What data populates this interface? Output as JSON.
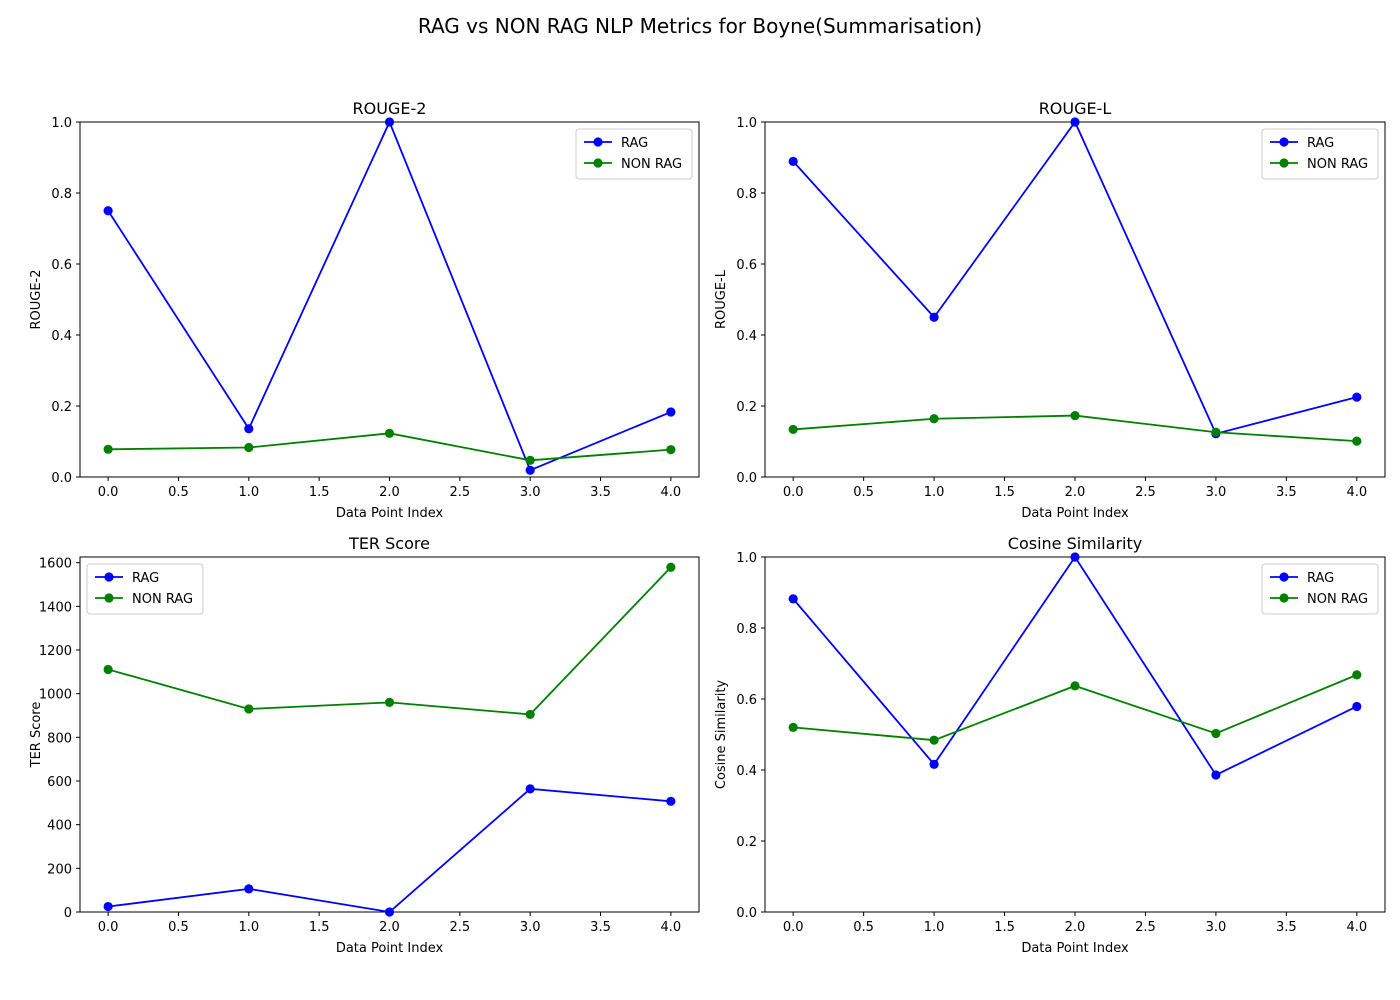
{
  "figure": {
    "title": "RAG vs NON RAG NLP Metrics for Boyne(Summarisation)"
  },
  "chart_data": [
    {
      "type": "line",
      "title": "ROUGE-2",
      "xlabel": "Data Point Index",
      "ylabel": "ROUGE-2",
      "x": [
        0,
        1,
        2,
        3,
        4
      ],
      "xlim": [
        -0.2,
        4.2
      ],
      "ylim": [
        0,
        1.0
      ],
      "xticks": [
        0.0,
        0.5,
        1.0,
        1.5,
        2.0,
        2.5,
        3.0,
        3.5,
        4.0
      ],
      "yticks": [
        0.0,
        0.2,
        0.4,
        0.6,
        0.8,
        1.0
      ],
      "ytick_decimals": 1,
      "legend_loc": "top-right",
      "series": [
        {
          "name": "RAG",
          "color": "#0000ff",
          "values": [
            0.75,
            0.136,
            1.0,
            0.019,
            0.183
          ]
        },
        {
          "name": "NON RAG",
          "color": "#008000",
          "values": [
            0.078,
            0.083,
            0.123,
            0.047,
            0.077
          ]
        }
      ]
    },
    {
      "type": "line",
      "title": "ROUGE-L",
      "xlabel": "Data Point Index",
      "ylabel": "ROUGE-L",
      "x": [
        0,
        1,
        2,
        3,
        4
      ],
      "xlim": [
        -0.2,
        4.2
      ],
      "ylim": [
        0,
        1.0
      ],
      "xticks": [
        0.0,
        0.5,
        1.0,
        1.5,
        2.0,
        2.5,
        3.0,
        3.5,
        4.0
      ],
      "yticks": [
        0.0,
        0.2,
        0.4,
        0.6,
        0.8,
        1.0
      ],
      "ytick_decimals": 1,
      "legend_loc": "top-right",
      "series": [
        {
          "name": "RAG",
          "color": "#0000ff",
          "values": [
            0.889,
            0.45,
            1.0,
            0.122,
            0.225
          ]
        },
        {
          "name": "NON RAG",
          "color": "#008000",
          "values": [
            0.134,
            0.164,
            0.173,
            0.126,
            0.101
          ]
        }
      ]
    },
    {
      "type": "line",
      "title": "TER Score",
      "xlabel": "Data Point Index",
      "ylabel": "TER Score",
      "x": [
        0,
        1,
        2,
        3,
        4
      ],
      "xlim": [
        -0.2,
        4.2
      ],
      "ylim": [
        0,
        1626
      ],
      "xticks": [
        0.0,
        0.5,
        1.0,
        1.5,
        2.0,
        2.5,
        3.0,
        3.5,
        4.0
      ],
      "yticks": [
        0,
        200,
        400,
        600,
        800,
        1000,
        1200,
        1400,
        1600
      ],
      "ytick_decimals": 0,
      "legend_loc": "top-left",
      "series": [
        {
          "name": "RAG",
          "color": "#0000ff",
          "values": [
            25,
            106,
            0,
            564,
            507
          ]
        },
        {
          "name": "NON RAG",
          "color": "#008000",
          "values": [
            1111,
            930,
            960,
            905,
            1579
          ]
        }
      ]
    },
    {
      "type": "line",
      "title": "Cosine Similarity",
      "xlabel": "Data Point Index",
      "ylabel": "Cosine Similarity",
      "x": [
        0,
        1,
        2,
        3,
        4
      ],
      "xlim": [
        -0.2,
        4.2
      ],
      "ylim": [
        0,
        1.0
      ],
      "xticks": [
        0.0,
        0.5,
        1.0,
        1.5,
        2.0,
        2.5,
        3.0,
        3.5,
        4.0
      ],
      "yticks": [
        0.0,
        0.2,
        0.4,
        0.6,
        0.8,
        1.0
      ],
      "ytick_decimals": 1,
      "legend_loc": "top-right",
      "series": [
        {
          "name": "RAG",
          "color": "#0000ff",
          "values": [
            0.882,
            0.416,
            1.0,
            0.386,
            0.579
          ]
        },
        {
          "name": "NON RAG",
          "color": "#008000",
          "values": [
            0.52,
            0.484,
            0.637,
            0.503,
            0.668
          ]
        }
      ]
    }
  ]
}
